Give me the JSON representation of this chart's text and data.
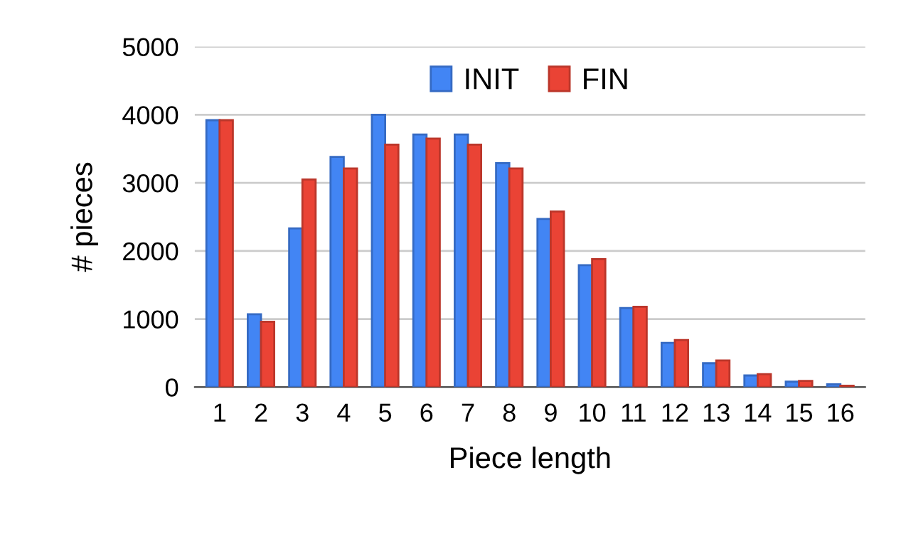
{
  "chart_data": {
    "type": "bar",
    "xlabel": "Piece length",
    "ylabel": "# pieces",
    "categories": [
      "1",
      "2",
      "3",
      "4",
      "5",
      "6",
      "7",
      "8",
      "9",
      "10",
      "11",
      "12",
      "13",
      "14",
      "15",
      "16"
    ],
    "series": [
      {
        "name": "INIT",
        "color": "#4285f4",
        "values": [
          3920,
          1070,
          2330,
          3380,
          4000,
          3710,
          3710,
          3290,
          2470,
          1790,
          1160,
          650,
          350,
          170,
          80,
          40
        ]
      },
      {
        "name": "FIN",
        "color": "#ea4335",
        "values": [
          3920,
          960,
          3050,
          3210,
          3560,
          3650,
          3560,
          3210,
          2580,
          1880,
          1180,
          690,
          390,
          190,
          90,
          20
        ]
      }
    ],
    "ylim": [
      0,
      5000
    ],
    "yticks": [
      0,
      1000,
      2000,
      3000,
      4000,
      5000
    ],
    "grid": "y",
    "legend": "top"
  }
}
